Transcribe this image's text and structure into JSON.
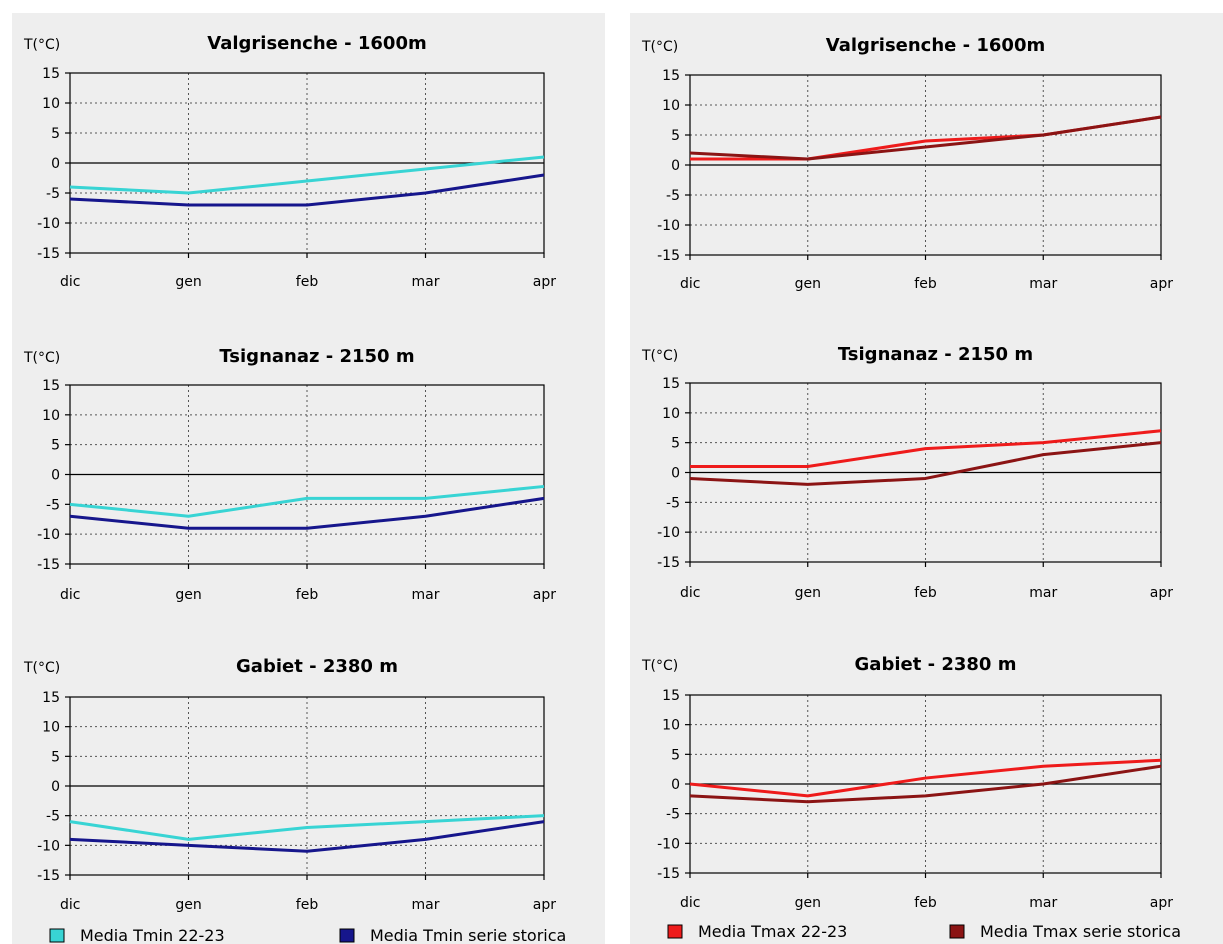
{
  "colors": {
    "tmin_2223": "#38d4d4",
    "tmin_storica": "#16168c",
    "tmax_2223": "#ee1b1b",
    "tmax_storica": "#8b1414",
    "zero_line": "#000000",
    "grid": "#555555"
  },
  "legend_left": [
    {
      "label": "Media Tmin 22-23",
      "color": "#38d4d4"
    },
    {
      "label": "Media Tmin serie storica",
      "color": "#16168c"
    }
  ],
  "legend_right": [
    {
      "label": "Media Tmax 22-23",
      "color": "#ee1b1b"
    },
    {
      "label": "Media Tmax serie storica",
      "color": "#8b1414"
    }
  ],
  "chart_data": [
    {
      "type": "line",
      "panel": "left",
      "row": 0,
      "title": "Valgrisenche - 1600m",
      "ylabel": "T(°C)",
      "xlabel": "",
      "categories": [
        "dic",
        "gen",
        "feb",
        "mar",
        "apr"
      ],
      "ylim": [
        -15,
        15
      ],
      "yticks": [
        15,
        10,
        5,
        0,
        -5,
        -10,
        -15
      ],
      "grid": true,
      "series": [
        {
          "name": "Media Tmin 22-23",
          "color": "#38d4d4",
          "values": [
            -4,
            -5,
            -3,
            -1,
            1
          ]
        },
        {
          "name": "Media Tmin serie storica",
          "color": "#16168c",
          "values": [
            -6,
            -7,
            -7,
            -5,
            -2
          ]
        }
      ]
    },
    {
      "type": "line",
      "panel": "left",
      "row": 1,
      "title": "Tsignanaz - 2150 m",
      "ylabel": "T(°C)",
      "xlabel": "",
      "categories": [
        "dic",
        "gen",
        "feb",
        "mar",
        "apr"
      ],
      "ylim": [
        -15,
        15
      ],
      "yticks": [
        15,
        10,
        5,
        0,
        -5,
        -10,
        -15
      ],
      "grid": true,
      "series": [
        {
          "name": "Media Tmin 22-23",
          "color": "#38d4d4",
          "values": [
            -5,
            -7,
            -4,
            -4,
            -2
          ]
        },
        {
          "name": "Media Tmin serie storica",
          "color": "#16168c",
          "values": [
            -7,
            -9,
            -9,
            -7,
            -4
          ]
        }
      ]
    },
    {
      "type": "line",
      "panel": "left",
      "row": 2,
      "title": "Gabiet - 2380 m",
      "ylabel": "T(°C)",
      "xlabel": "",
      "categories": [
        "dic",
        "gen",
        "feb",
        "mar",
        "apr"
      ],
      "ylim": [
        -15,
        15
      ],
      "yticks": [
        15,
        10,
        5,
        0,
        -5,
        -10,
        -15
      ],
      "grid": true,
      "series": [
        {
          "name": "Media Tmin 22-23",
          "color": "#38d4d4",
          "values": [
            -6,
            -9,
            -7,
            -6,
            -5
          ]
        },
        {
          "name": "Media Tmin serie storica",
          "color": "#16168c",
          "values": [
            -9,
            -10,
            -11,
            -9,
            -6
          ]
        }
      ]
    },
    {
      "type": "line",
      "panel": "right",
      "row": 0,
      "title": "Valgrisenche - 1600m",
      "ylabel": "T(°C)",
      "xlabel": "",
      "categories": [
        "dic",
        "gen",
        "feb",
        "mar",
        "apr"
      ],
      "ylim": [
        -15,
        15
      ],
      "yticks": [
        15,
        10,
        5,
        0,
        -5,
        -10,
        -15
      ],
      "grid": true,
      "series": [
        {
          "name": "Media Tmax 22-23",
          "color": "#ee1b1b",
          "values": [
            1,
            1,
            4,
            5,
            8
          ]
        },
        {
          "name": "Media Tmax serie storica",
          "color": "#8b1414",
          "values": [
            2,
            1,
            3,
            5,
            8
          ]
        }
      ]
    },
    {
      "type": "line",
      "panel": "right",
      "row": 1,
      "title": "Tsignanaz - 2150 m",
      "ylabel": "T(°C)",
      "xlabel": "",
      "categories": [
        "dic",
        "gen",
        "feb",
        "mar",
        "apr"
      ],
      "ylim": [
        -15,
        15
      ],
      "yticks": [
        15,
        10,
        5,
        0,
        -5,
        -10,
        -15
      ],
      "grid": true,
      "series": [
        {
          "name": "Media Tmax 22-23",
          "color": "#ee1b1b",
          "values": [
            1,
            1,
            4,
            5,
            7
          ]
        },
        {
          "name": "Media Tmax serie storica",
          "color": "#8b1414",
          "values": [
            -1,
            -2,
            -1,
            3,
            5
          ]
        }
      ]
    },
    {
      "type": "line",
      "panel": "right",
      "row": 2,
      "title": "Gabiet - 2380 m",
      "ylabel": "T(°C)",
      "xlabel": "",
      "categories": [
        "dic",
        "gen",
        "feb",
        "mar",
        "apr"
      ],
      "ylim": [
        -15,
        15
      ],
      "yticks": [
        15,
        10,
        5,
        0,
        -5,
        -10,
        -15
      ],
      "grid": true,
      "series": [
        {
          "name": "Media Tmax 22-23",
          "color": "#ee1b1b",
          "values": [
            0,
            -2,
            1,
            3,
            4
          ]
        },
        {
          "name": "Media Tmax serie storica",
          "color": "#8b1414",
          "values": [
            -2,
            -3,
            -2,
            0,
            3
          ]
        }
      ]
    }
  ]
}
